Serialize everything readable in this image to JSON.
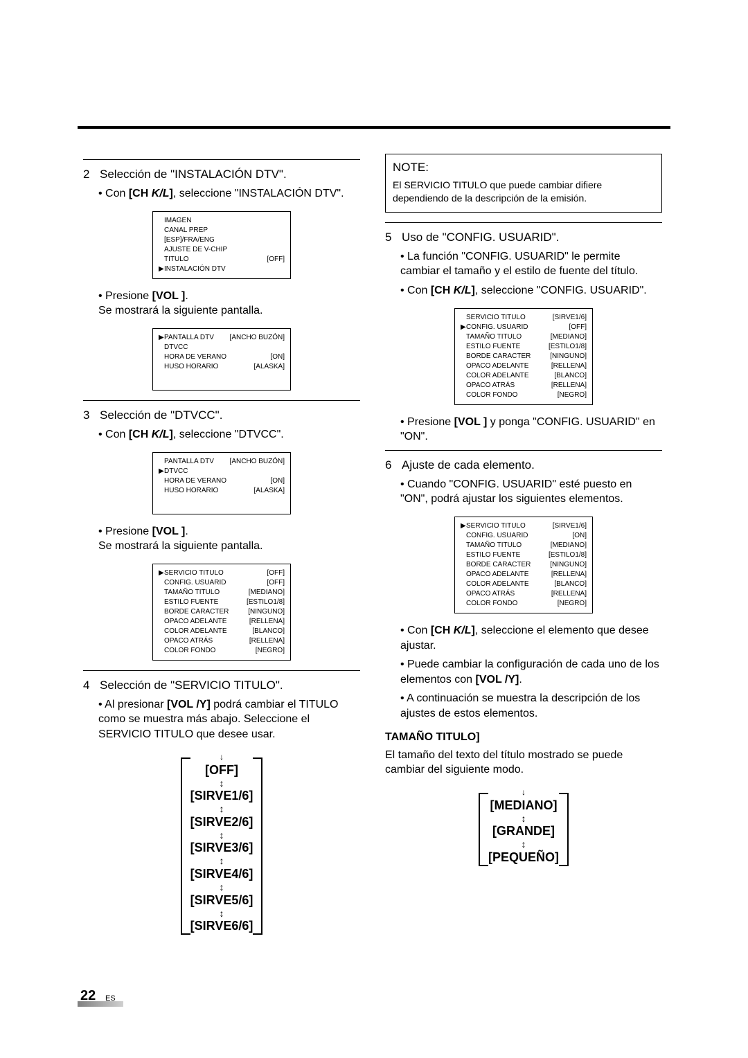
{
  "page": {
    "number": "22",
    "lang": "ES"
  },
  "left": {
    "step2": {
      "num": "2",
      "title": "Selección de \"INSTALACIÓN DTV\".",
      "bullet1_pre": "• Con ",
      "bullet1_bold": "[CH K/L]",
      "bullet1_post": ", seleccione \"INSTALACIÓN DTV\".",
      "bullet2_pre": "• Presione ",
      "bullet2_bold": "[VOL   ]",
      "bullet2_post": ".",
      "bullet2_line2": "Se mostrará la siguiente pantalla."
    },
    "menu1": [
      {
        "arrow": "",
        "label": "IMAGEN",
        "val": ""
      },
      {
        "arrow": "",
        "label": "CANAL PREP",
        "val": ""
      },
      {
        "arrow": "",
        "label": "[ESP]/FRA/ENG",
        "val": ""
      },
      {
        "arrow": "",
        "label": "AJUSTE DE V-CHIP",
        "val": ""
      },
      {
        "arrow": "",
        "label": "TITULO",
        "val": "[OFF]"
      },
      {
        "arrow": "▶",
        "label": "INSTALACIÓN DTV",
        "val": ""
      }
    ],
    "menu2": [
      {
        "arrow": "▶",
        "label": "PANTALLA DTV",
        "val": "[ANCHO BUZÓN]"
      },
      {
        "arrow": "",
        "label": "DTVCC",
        "val": ""
      },
      {
        "arrow": "",
        "label": "HORA DE VERANO",
        "val": "[ON]"
      },
      {
        "arrow": "",
        "label": "HUSO HORARIO",
        "val": "[ALASKA]"
      }
    ],
    "step3": {
      "num": "3",
      "title": "Selección de \"DTVCC\".",
      "bullet1_pre": "• Con ",
      "bullet1_bold": "[CH K/L]",
      "bullet1_post": ", seleccione \"DTVCC\".",
      "bullet2_pre": "• Presione ",
      "bullet2_bold": "[VOL   ]",
      "bullet2_post": ".",
      "bullet2_line2": "Se mostrará la siguiente pantalla."
    },
    "menu3": [
      {
        "arrow": "",
        "label": "PANTALLA DTV",
        "val": "[ANCHO BUZÓN]"
      },
      {
        "arrow": "▶",
        "label": "DTVCC",
        "val": ""
      },
      {
        "arrow": "",
        "label": "HORA DE VERANO",
        "val": "[ON]"
      },
      {
        "arrow": "",
        "label": "HUSO HORARIO",
        "val": "[ALASKA]"
      }
    ],
    "menu4": [
      {
        "arrow": "▶",
        "label": "SERVICIO TITULO",
        "val": "[OFF]"
      },
      {
        "arrow": "",
        "label": "CONFIG. USUARID",
        "val": "[OFF]"
      },
      {
        "arrow": "",
        "label": "TAMAÑO TITULO",
        "val": "[MEDIANO]"
      },
      {
        "arrow": "",
        "label": "ESTILO FUENTE",
        "val": "[ESTILO1/8]"
      },
      {
        "arrow": "",
        "label": "BORDE CARACTER",
        "val": "[NINGUNO]"
      },
      {
        "arrow": "",
        "label": "OPACO ADELANTE",
        "val": "[RELLENA]"
      },
      {
        "arrow": "",
        "label": "COLOR ADELANTE",
        "val": "[BLANCO]"
      },
      {
        "arrow": "",
        "label": "OPACO ATRÁS",
        "val": "[RELLENA]"
      },
      {
        "arrow": "",
        "label": "COLOR FONDO",
        "val": "[NEGRO]"
      }
    ],
    "step4": {
      "num": "4",
      "title": "Selección de \"SERVICIO TITULO\".",
      "bullet1_pre": "• Al presionar ",
      "bullet1_bold": "[VOL   /Y]",
      "bullet1_post": " podrá cambiar el TITULO como se muestra más abajo. Seleccione el SERVICIO TITULO que desee usar."
    },
    "cycle": [
      "[OFF]",
      "[SIRVE1/6]",
      "[SIRVE2/6]",
      "[SIRVE3/6]",
      "[SIRVE4/6]",
      "[SIRVE5/6]",
      "[SIRVE6/6]"
    ]
  },
  "right": {
    "note": {
      "title": "NOTE:",
      "text": "El SERVICIO TITULO que puede cambiar difiere dependiendo de la descripción de la emisión."
    },
    "step5": {
      "num": "5",
      "title": "Uso de \"CONFIG. USUARID\".",
      "bullet1": "• La función \"CONFIG. USUARID\" le permite cambiar el tamaño y el estilo de fuente del título.",
      "bullet2_pre": "• Con ",
      "bullet2_bold": "[CH K/L]",
      "bullet2_post": ", seleccione \"CONFIG. USUARID\".",
      "bullet3_pre": "• Presione ",
      "bullet3_bold": "[VOL   ]",
      "bullet3_post": " y ponga \"CONFIG. USUARID\" en \"ON\"."
    },
    "menu5": [
      {
        "arrow": "",
        "label": "SERVICIO TITULO",
        "val": "[SIRVE1/6]"
      },
      {
        "arrow": "▶",
        "label": "CONFIG. USUARID",
        "val": "[OFF]"
      },
      {
        "arrow": "",
        "label": "TAMAÑO TITULO",
        "val": "[MEDIANO]"
      },
      {
        "arrow": "",
        "label": "ESTILO FUENTE",
        "val": "[ESTILO1/8]"
      },
      {
        "arrow": "",
        "label": "BORDE CARACTER",
        "val": "[NINGUNO]"
      },
      {
        "arrow": "",
        "label": "OPACO ADELANTE",
        "val": "[RELLENA]"
      },
      {
        "arrow": "",
        "label": "COLOR ADELANTE",
        "val": "[BLANCO]"
      },
      {
        "arrow": "",
        "label": "OPACO ATRÁS",
        "val": "[RELLENA]"
      },
      {
        "arrow": "",
        "label": "COLOR FONDO",
        "val": "[NEGRO]"
      }
    ],
    "step6": {
      "num": "6",
      "title": "Ajuste de cada elemento.",
      "bullet1": "• Cuando \"CONFIG. USUARID\" esté puesto en \"ON\", podrá ajustar los siguientes elementos.",
      "bullet2_pre": "• Con ",
      "bullet2_bold": "[CH K/L]",
      "bullet2_post": ", seleccione el elemento que desee ajustar.",
      "bullet3_pre": "• Puede cambiar la configuración de cada uno de los elementos con ",
      "bullet3_bold": "[VOL   /Y]",
      "bullet3_post": ".",
      "bullet4": "• A continuación se muestra la descripción de los ajustes de estos elementos."
    },
    "menu6": [
      {
        "arrow": "▶",
        "label": "SERVICIO TITULO",
        "val": "[SIRVE1/6]"
      },
      {
        "arrow": "",
        "label": "CONFIG. USUARID",
        "val": "[ON]"
      },
      {
        "arrow": "",
        "label": "TAMAÑO TITULO",
        "val": "[MEDIANO]"
      },
      {
        "arrow": "",
        "label": "ESTILO FUENTE",
        "val": "[ESTILO1/8]"
      },
      {
        "arrow": "",
        "label": "BORDE CARACTER",
        "val": "[NINGUNO]"
      },
      {
        "arrow": "",
        "label": "OPACO ADELANTE",
        "val": "[RELLENA]"
      },
      {
        "arrow": "",
        "label": "COLOR ADELANTE",
        "val": "[BLANCO]"
      },
      {
        "arrow": "",
        "label": "OPACO ATRÁS",
        "val": "[RELLENA]"
      },
      {
        "arrow": "",
        "label": "COLOR FONDO",
        "val": "[NEGRO]"
      }
    ],
    "tamano": {
      "head": "TAMAÑO TITULO]",
      "para": "El tamaño del texto del título mostrado se puede cambiar del siguiente modo."
    },
    "cycle": [
      "[MEDIANO]",
      "[GRANDE]",
      "[PEQUEÑO]"
    ]
  }
}
